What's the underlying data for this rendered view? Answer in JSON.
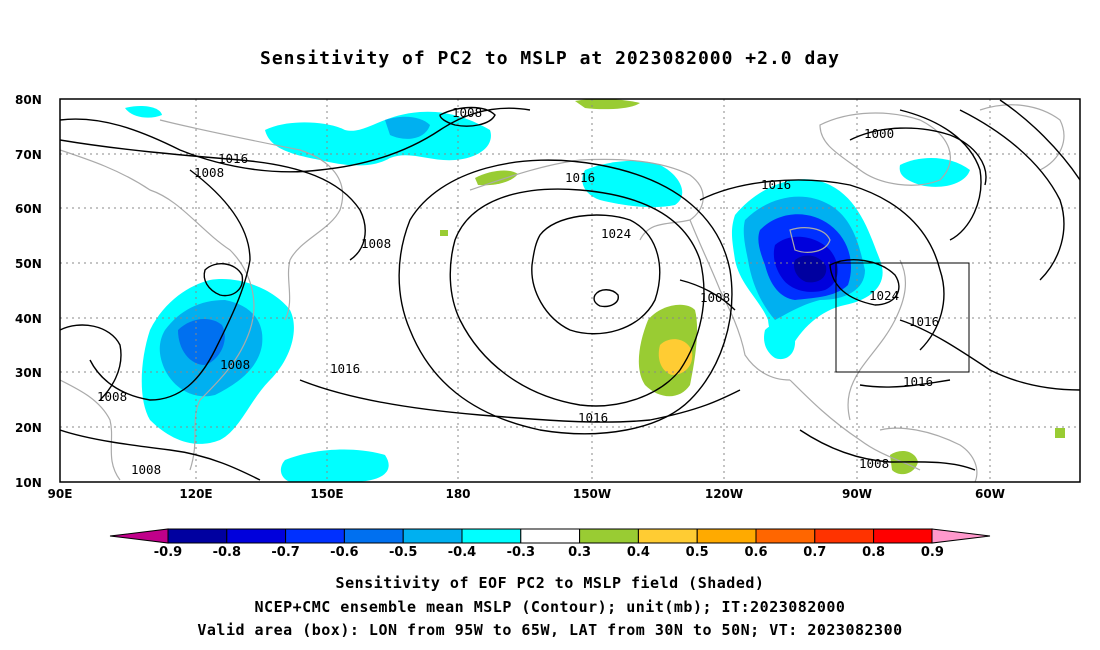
{
  "title": "Sensitivity of PC2 to MSLP at 2023082000 +2.0 day",
  "map": {
    "lat_labels": [
      "80N",
      "70N",
      "60N",
      "50N",
      "40N",
      "30N",
      "20N",
      "10N"
    ],
    "lon_labels": [
      "90E",
      "120E",
      "150E",
      "180",
      "150W",
      "120W",
      "90W",
      "60W"
    ],
    "valid_box": {
      "lon_range": [
        "95W",
        "65W"
      ],
      "lat_range": [
        "30N",
        "50N"
      ]
    }
  },
  "contour_labels": [
    {
      "text": "1008"
    },
    {
      "text": "1016"
    },
    {
      "text": "1008"
    },
    {
      "text": "1008"
    },
    {
      "text": "1016"
    },
    {
      "text": "1024"
    },
    {
      "text": "1016"
    },
    {
      "text": "1000"
    },
    {
      "text": "1008"
    },
    {
      "text": "1024"
    },
    {
      "text": "1016"
    },
    {
      "text": "1016"
    },
    {
      "text": "1008"
    },
    {
      "text": "1016"
    },
    {
      "text": "1008"
    },
    {
      "text": "1008"
    },
    {
      "text": "1016"
    },
    {
      "text": "1008"
    }
  ],
  "colorbar": {
    "labels": [
      "-0.9",
      "-0.8",
      "-0.7",
      "-0.6",
      "-0.5",
      "-0.4",
      "-0.3",
      "0.3",
      "0.4",
      "0.5",
      "0.6",
      "0.7",
      "0.8",
      "0.9"
    ],
    "colors": [
      "#0000a0",
      "#0000dc",
      "#0030ff",
      "#0070f0",
      "#00b0f0",
      "#00ffff",
      "#ffffff",
      "#99cc33",
      "#ffcc33",
      "#ffaa00",
      "#ff6600",
      "#ff3300",
      "#ff0000"
    ],
    "low_extend_color": "#c0008a",
    "high_extend_color": "#ff99cc"
  },
  "captions": {
    "line1": "Sensitivity of EOF PC2 to MSLP field (Shaded)",
    "line2": "NCEP+CMC ensemble mean MSLP (Contour); unit(mb); IT:2023082000",
    "line3": "Valid area (box): LON from 95W to 65W, LAT from 30N to 50N; VT: 2023082300"
  }
}
